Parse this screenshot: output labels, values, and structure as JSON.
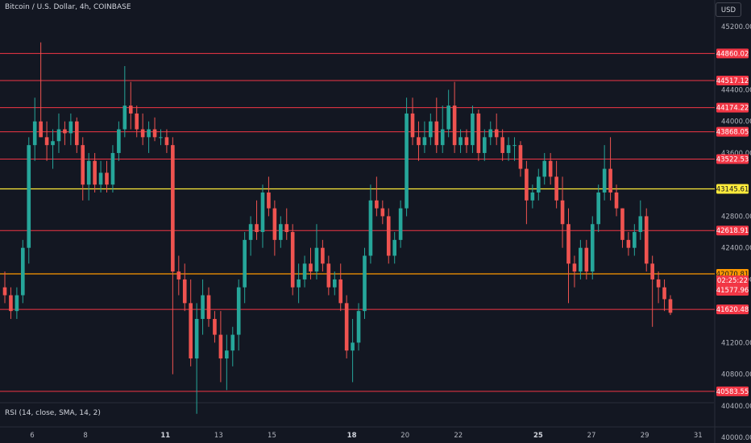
{
  "header": {
    "title": "Bitcoin / U.S. Dollar, 4h, COINBASE"
  },
  "currency_button": {
    "label": "USD"
  },
  "rsi_indicator": {
    "label": "RSI (14, close, SMA, 14, 2)"
  },
  "colors": {
    "background": "#131722",
    "up": "#26a69a",
    "down": "#ef5350",
    "red_level": "#f23645",
    "yellow_level": "#ffeb3b",
    "orange_level": "#ff9800",
    "axis_text": "#b2b5be",
    "panel_border": "#2a2e39"
  },
  "chart_data": {
    "type": "candlestick",
    "symbol": "Bitcoin / U.S. Dollar",
    "interval": "4h",
    "exchange": "COINBASE",
    "currency": "USD",
    "y_ticks": [
      {
        "value": 45200,
        "label": "45200.00"
      },
      {
        "value": 44400,
        "label": "44400.00"
      },
      {
        "value": 44000,
        "label": "44000.00"
      },
      {
        "value": 43600,
        "label": "43600.00"
      },
      {
        "value": 42800,
        "label": "42800.00"
      },
      {
        "value": 42400,
        "label": "42400.00"
      },
      {
        "value": 42000,
        "label": "42000.00"
      },
      {
        "value": 41200,
        "label": "41200.00"
      },
      {
        "value": 40800,
        "label": "40800.00"
      },
      {
        "value": 40400,
        "label": "40400.00"
      },
      {
        "value": 40000,
        "label": "40000.00"
      }
    ],
    "x_ticks": [
      {
        "label": "6",
        "bold": false,
        "date": "Dec 6"
      },
      {
        "label": "8",
        "bold": false,
        "date": "Dec 8"
      },
      {
        "label": "11",
        "bold": true,
        "date": "Dec 11"
      },
      {
        "label": "13",
        "bold": false,
        "date": "Dec 13"
      },
      {
        "label": "15",
        "bold": false,
        "date": "Dec 15"
      },
      {
        "label": "18",
        "bold": true,
        "date": "Dec 18"
      },
      {
        "label": "20",
        "bold": false,
        "date": "Dec 20"
      },
      {
        "label": "22",
        "bold": false,
        "date": "Dec 22"
      },
      {
        "label": "25",
        "bold": true,
        "date": "Dec 25"
      },
      {
        "label": "27",
        "bold": false,
        "date": "Dec 27"
      },
      {
        "label": "29",
        "bold": false,
        "date": "Dec 29"
      },
      {
        "label": "31",
        "bold": false,
        "date": "Dec 31"
      }
    ],
    "levels": [
      {
        "value": 44860.02,
        "label": "44860.02",
        "kind": "red"
      },
      {
        "value": 44517.12,
        "label": "44517.12",
        "kind": "red"
      },
      {
        "value": 44174.22,
        "label": "44174.22",
        "kind": "red"
      },
      {
        "value": 43868.05,
        "label": "43868.05",
        "kind": "red"
      },
      {
        "value": 43522.53,
        "label": "43522.53",
        "kind": "red"
      },
      {
        "value": 43145.61,
        "label": "43145.61",
        "kind": "yellow"
      },
      {
        "value": 42618.91,
        "label": "42618.91",
        "kind": "red"
      },
      {
        "value": 42070.81,
        "label": "42070.81",
        "kind": "orange"
      },
      {
        "value": 41620.48,
        "label": "41620.48",
        "kind": "red"
      },
      {
        "value": 40583.55,
        "label": "40583.55",
        "kind": "red"
      }
    ],
    "last_price": {
      "value": 41577.96,
      "label": "41577.96",
      "countdown": "02:25:22"
    },
    "candles": [
      [
        41900,
        42100,
        41700,
        41800
      ],
      [
        41800,
        41900,
        41500,
        41600
      ],
      [
        41600,
        41900,
        41500,
        41800
      ],
      [
        41800,
        42500,
        41700,
        42400
      ],
      [
        42400,
        43800,
        42200,
        43700
      ],
      [
        43700,
        44300,
        43500,
        44000
      ],
      [
        44000,
        45000,
        43800,
        43800
      ],
      [
        43800,
        44000,
        43500,
        43700
      ],
      [
        43700,
        43900,
        43400,
        43750
      ],
      [
        43750,
        44100,
        43600,
        43900
      ],
      [
        43900,
        44000,
        43700,
        43850
      ],
      [
        43850,
        44100,
        43700,
        44000
      ],
      [
        44000,
        44050,
        43600,
        43700
      ],
      [
        43700,
        43800,
        43000,
        43200
      ],
      [
        43200,
        43600,
        43000,
        43500
      ],
      [
        43500,
        43600,
        43100,
        43200
      ],
      [
        43200,
        43500,
        43100,
        43350
      ],
      [
        43350,
        43500,
        43100,
        43200
      ],
      [
        43200,
        43700,
        43100,
        43600
      ],
      [
        43600,
        44000,
        43500,
        43900
      ],
      [
        43900,
        44700,
        43800,
        44200
      ],
      [
        44200,
        44500,
        43900,
        44100
      ],
      [
        44100,
        44200,
        43800,
        43900
      ],
      [
        43900,
        44100,
        43700,
        43800
      ],
      [
        43800,
        44000,
        43600,
        43900
      ],
      [
        43900,
        44050,
        43750,
        43800
      ],
      [
        43800,
        43900,
        43700,
        43800
      ],
      [
        43800,
        43900,
        43600,
        43700
      ],
      [
        43700,
        43800,
        40800,
        42100
      ],
      [
        42100,
        42300,
        41800,
        42000
      ],
      [
        42000,
        42200,
        41600,
        41700
      ],
      [
        41700,
        42000,
        40900,
        41000
      ],
      [
        41000,
        41700,
        40300,
        41500
      ],
      [
        41500,
        42000,
        41300,
        41800
      ],
      [
        41800,
        41900,
        41400,
        41500
      ],
      [
        41500,
        41600,
        41200,
        41300
      ],
      [
        41300,
        41600,
        40700,
        41000
      ],
      [
        41000,
        41300,
        40600,
        41100
      ],
      [
        41100,
        41400,
        40900,
        41300
      ],
      [
        41300,
        42000,
        41100,
        41900
      ],
      [
        41900,
        42600,
        41700,
        42500
      ],
      [
        42500,
        42800,
        42300,
        42700
      ],
      [
        42700,
        43000,
        42500,
        42600
      ],
      [
        42600,
        43200,
        42400,
        43100
      ],
      [
        43100,
        43300,
        42800,
        42900
      ],
      [
        42900,
        43000,
        42300,
        42500
      ],
      [
        42500,
        42800,
        42400,
        42700
      ],
      [
        42700,
        42900,
        42500,
        42600
      ],
      [
        42600,
        42700,
        41800,
        41900
      ],
      [
        41900,
        42200,
        41700,
        42000
      ],
      [
        42000,
        42300,
        41900,
        42200
      ],
      [
        42200,
        42400,
        42000,
        42100
      ],
      [
        42100,
        42700,
        42000,
        42400
      ],
      [
        42400,
        42500,
        42100,
        42200
      ],
      [
        42200,
        42300,
        41800,
        41900
      ],
      [
        41900,
        42100,
        41800,
        42000
      ],
      [
        42000,
        42200,
        41600,
        41700
      ],
      [
        41700,
        41800,
        41000,
        41100
      ],
      [
        41100,
        41500,
        40700,
        41200
      ],
      [
        41200,
        41700,
        41100,
        41600
      ],
      [
        41600,
        42400,
        41500,
        42300
      ],
      [
        42300,
        43200,
        42200,
        43000
      ],
      [
        43000,
        43300,
        42800,
        42900
      ],
      [
        42900,
        43000,
        42700,
        42800
      ],
      [
        42800,
        42900,
        42200,
        42300
      ],
      [
        42300,
        42600,
        42200,
        42500
      ],
      [
        42500,
        43000,
        42400,
        42900
      ],
      [
        42900,
        44300,
        42800,
        44100
      ],
      [
        44100,
        44300,
        43700,
        43800
      ],
      [
        43800,
        44000,
        43500,
        43700
      ],
      [
        43700,
        44000,
        43600,
        43800
      ],
      [
        43800,
        44100,
        43700,
        44000
      ],
      [
        44000,
        44300,
        43600,
        43700
      ],
      [
        43700,
        44200,
        43600,
        43900
      ],
      [
        43900,
        44400,
        43800,
        44200
      ],
      [
        44200,
        44500,
        43600,
        43700
      ],
      [
        43700,
        43900,
        43600,
        43800
      ],
      [
        43800,
        43900,
        43600,
        43700
      ],
      [
        43700,
        44200,
        43600,
        44100
      ],
      [
        44100,
        44150,
        43500,
        43600
      ],
      [
        43600,
        43900,
        43500,
        43800
      ],
      [
        43800,
        44000,
        43700,
        43900
      ],
      [
        43900,
        44100,
        43700,
        43800
      ],
      [
        43800,
        43900,
        43500,
        43600
      ],
      [
        43600,
        43800,
        43500,
        43700
      ],
      [
        43700,
        43800,
        43500,
        43700
      ],
      [
        43700,
        43750,
        43300,
        43400
      ],
      [
        43400,
        43500,
        42700,
        43000
      ],
      [
        43000,
        43200,
        42900,
        43100
      ],
      [
        43100,
        43400,
        43000,
        43300
      ],
      [
        43300,
        43600,
        43200,
        43500
      ],
      [
        43500,
        43600,
        43200,
        43300
      ],
      [
        43300,
        43500,
        42900,
        43000
      ],
      [
        43000,
        43300,
        42400,
        42700
      ],
      [
        42700,
        42900,
        41700,
        42200
      ],
      [
        42200,
        42300,
        41900,
        42100
      ],
      [
        42100,
        42500,
        42000,
        42400
      ],
      [
        42400,
        42500,
        42000,
        42100
      ],
      [
        42100,
        42800,
        42000,
        42700
      ],
      [
        42700,
        43200,
        42600,
        43100
      ],
      [
        43100,
        43700,
        43000,
        43400
      ],
      [
        43400,
        43800,
        43000,
        43100
      ],
      [
        43100,
        43200,
        42800,
        42900
      ],
      [
        42900,
        42900,
        42400,
        42500
      ],
      [
        42500,
        42600,
        42300,
        42400
      ],
      [
        42400,
        42700,
        42300,
        42600
      ],
      [
        42600,
        43000,
        42500,
        42800
      ],
      [
        42800,
        42900,
        42100,
        42200
      ],
      [
        42200,
        42300,
        41400,
        42000
      ],
      [
        42000,
        42100,
        41700,
        41900
      ],
      [
        41900,
        42000,
        41600,
        41750
      ],
      [
        41750,
        41800,
        41550,
        41577.96
      ]
    ]
  }
}
